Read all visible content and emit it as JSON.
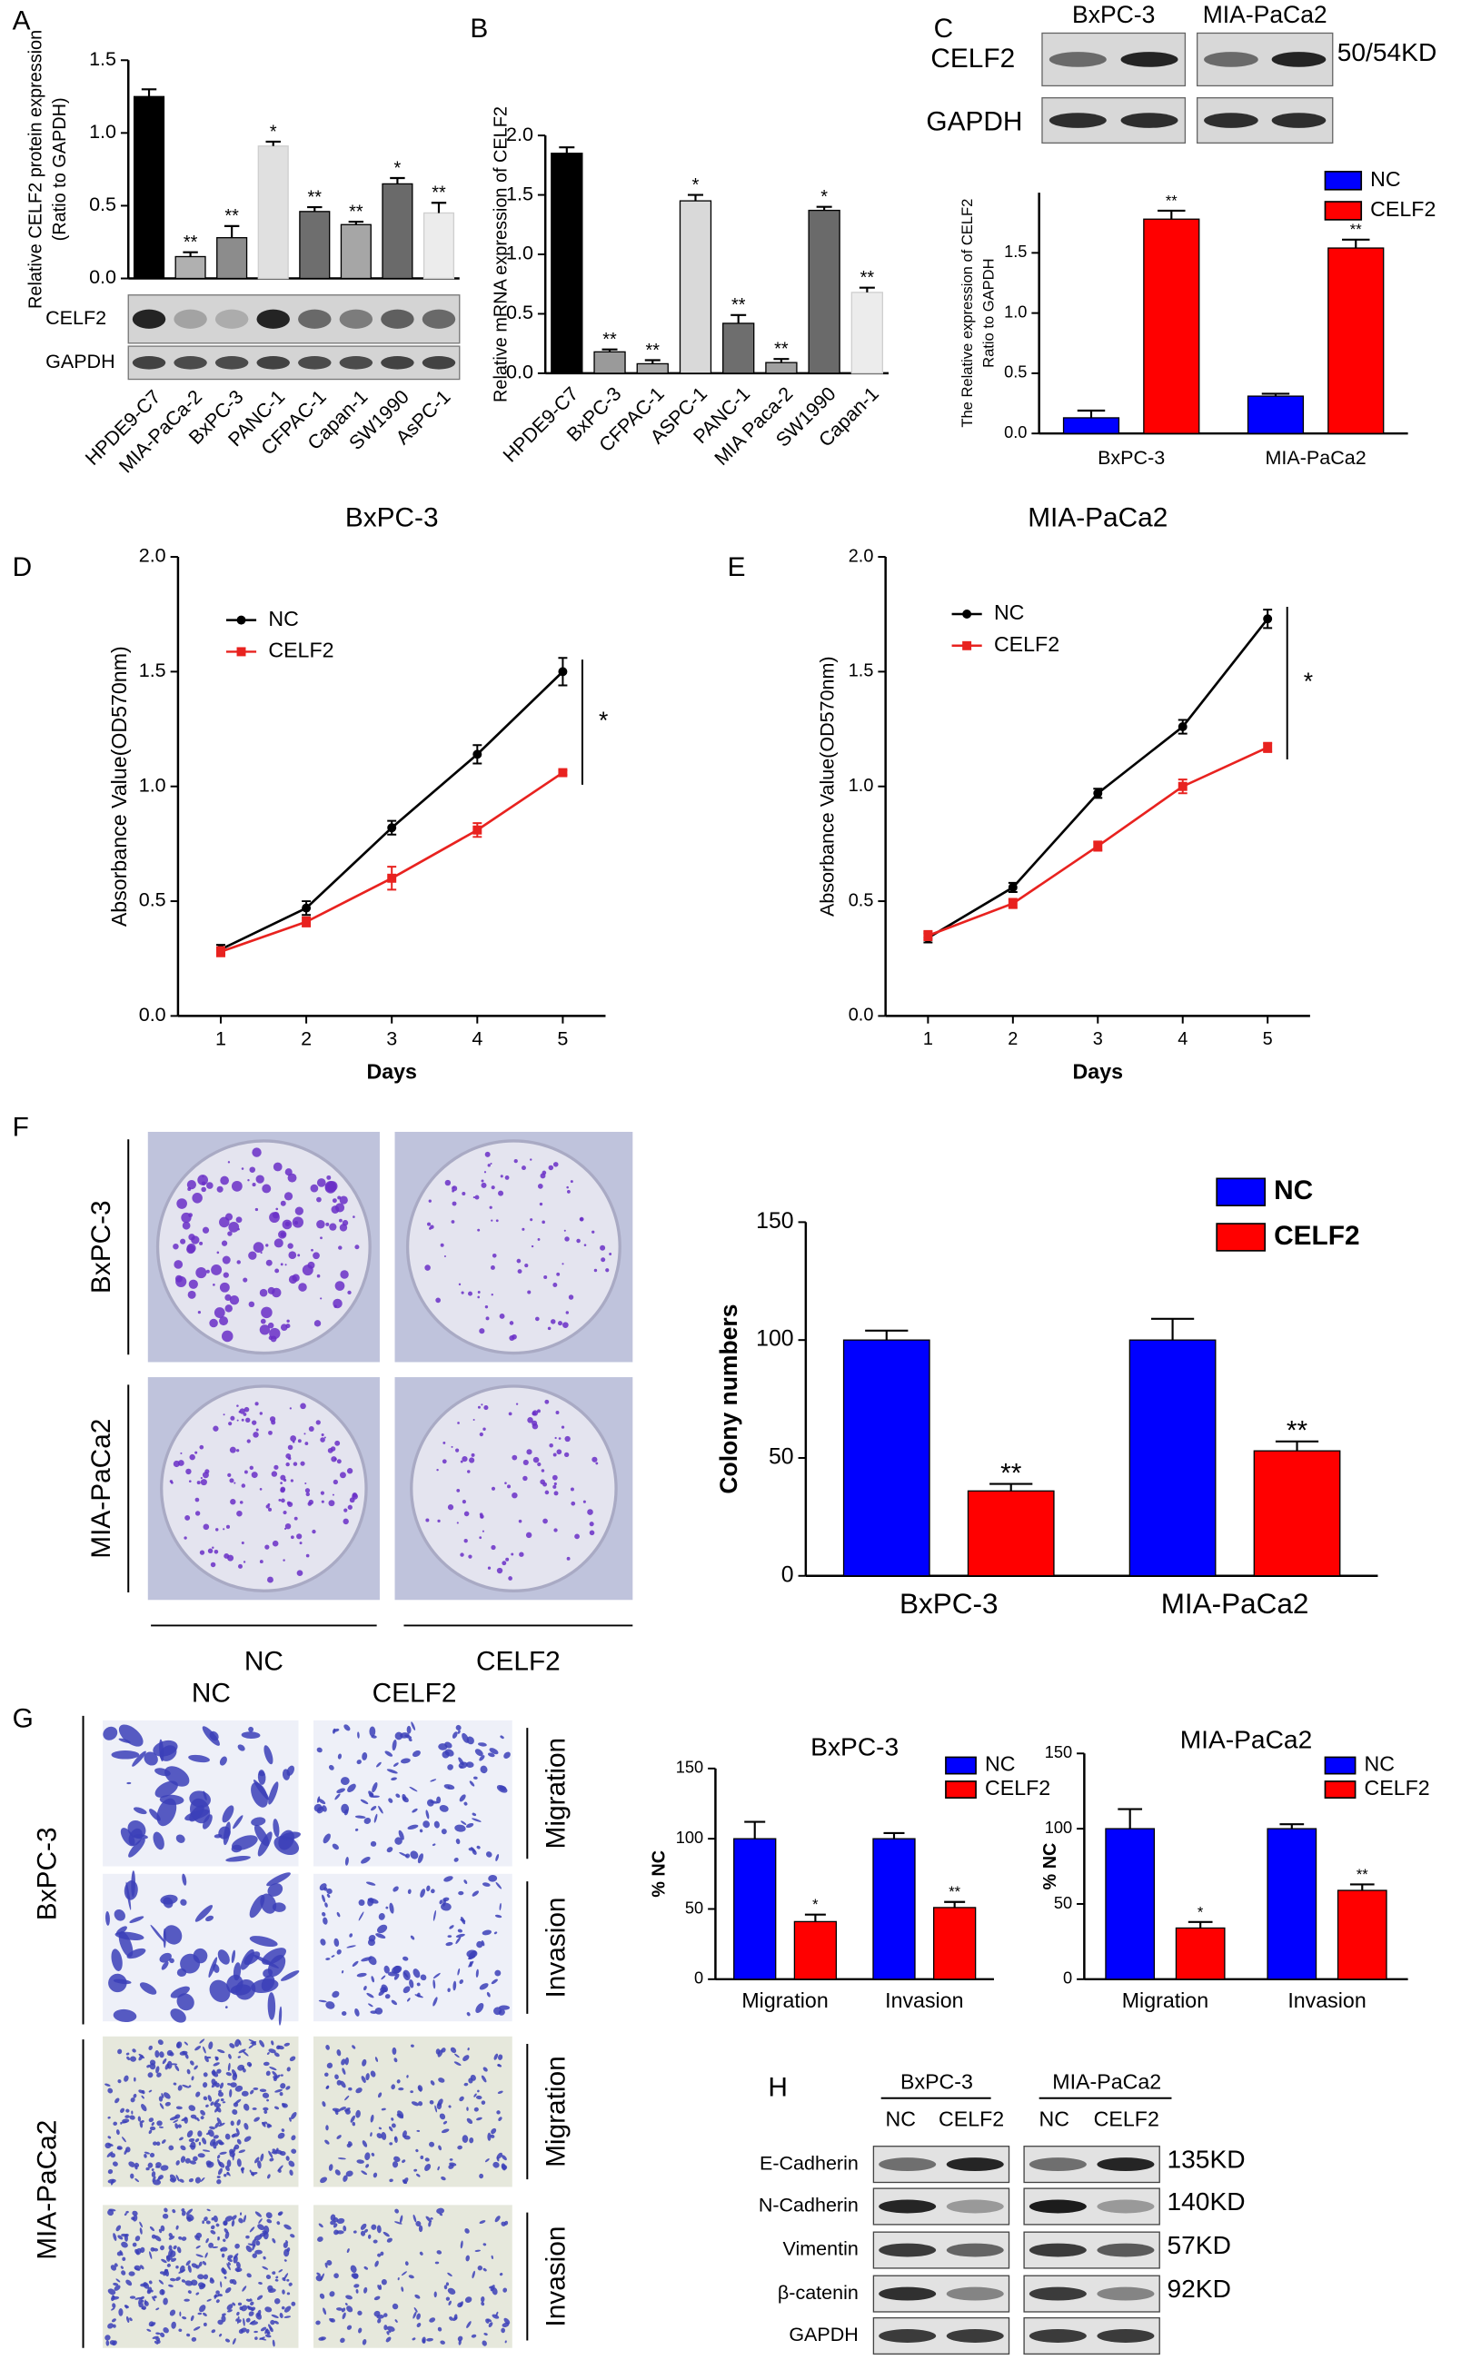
{
  "chart_data": [
    {
      "type": "bar",
      "ylabel": [
        "Relative CELF2 protein expression",
        "(Ratio to GAPDH)"
      ],
      "categories": [
        "HPDE9-C7",
        "MIA-PaCa-2",
        "BxPC-3",
        "PANC-1",
        "CFPAC-1",
        "Capan-1",
        "SW1990",
        "AsPC-1"
      ],
      "values": [
        1.25,
        0.15,
        0.28,
        0.91,
        0.46,
        0.37,
        0.65,
        0.45
      ],
      "errors": [
        0.05,
        0.03,
        0.08,
        0.03,
        0.03,
        0.02,
        0.04,
        0.07
      ],
      "annotations": [
        null,
        "**",
        "**",
        "*",
        "**",
        "**",
        "*",
        "**"
      ],
      "colors": [
        "#000000",
        "#b0b0b0",
        "#8c8c8c",
        "#e0e0e0",
        "#6e6e6e",
        "#a6a6a6",
        "#6a6a6a",
        "#ececec"
      ],
      "ylim": [
        0,
        1.5
      ],
      "yticks": [
        {
          "value": 0,
          "label": "0.0"
        },
        0.5,
        {
          "value": 1,
          "label": "1.0"
        },
        1.5
      ]
    },
    {
      "type": "bar",
      "ylabel": [
        "Relative mRNA expression of CELF2"
      ],
      "categories": [
        "HPDE9-C7",
        "BxPC-3",
        "CFPAC-1",
        "ASPC-1",
        "PANC-1",
        "MIA Paca-2",
        "SW1990",
        "Capan-1"
      ],
      "values": [
        1.85,
        0.18,
        0.08,
        1.45,
        0.42,
        0.09,
        1.37,
        0.68
      ],
      "errors": [
        0.05,
        0.02,
        0.03,
        0.05,
        0.07,
        0.03,
        0.03,
        0.04
      ],
      "annotations": [
        null,
        "**",
        "**",
        "*",
        "**",
        "**",
        "*",
        "**"
      ],
      "colors": [
        "#000000",
        "#9a9a9a",
        "#a8a8a8",
        "#d9d9d9",
        "#6e6e6e",
        "#a0a0a0",
        "#6a6a6a",
        "#ececec"
      ],
      "ylim": [
        0,
        2
      ],
      "yticks": [
        {
          "value": 0,
          "label": "0.0"
        },
        0.5,
        {
          "value": 1,
          "label": "1.0"
        },
        1.5,
        {
          "value": 2,
          "label": "2.0"
        }
      ]
    },
    {
      "type": "bar",
      "ylabel": [
        "The Relative expression of CELF2",
        "Ratio to GAPDH"
      ],
      "categories": [
        "BxPC-3",
        "MIA-PaCa2"
      ],
      "series": [
        {
          "name": "NC",
          "color": "#0000ff",
          "values": [
            0.13,
            0.31
          ],
          "errors": [
            0.06,
            0.02
          ]
        },
        {
          "name": "CELF2",
          "color": "#ff0000",
          "values": [
            1.78,
            1.54
          ],
          "errors": [
            0.07,
            0.07
          ],
          "annotations": [
            "**",
            "**"
          ]
        }
      ],
      "legend": "upper right",
      "ylim": [
        0,
        2
      ],
      "yticks": [
        {
          "value": 0,
          "label": "0.0"
        },
        0.5,
        {
          "value": 1,
          "label": "1.0"
        },
        1.5
      ]
    },
    {
      "type": "line",
      "title": "BxPC-3",
      "xlabel": "Days",
      "ylabel": [
        "Absorbance Value(OD570nm)"
      ],
      "x": [
        1,
        2,
        3,
        4,
        5
      ],
      "series": [
        {
          "name": "NC",
          "color": "#000000",
          "values": [
            0.29,
            0.47,
            0.82,
            1.14,
            1.5
          ],
          "errors": [
            0.02,
            0.03,
            0.03,
            0.04,
            0.06
          ]
        },
        {
          "name": "CELF2",
          "color": "#e8221f",
          "values": [
            0.28,
            0.41,
            0.6,
            0.81,
            1.06
          ],
          "errors": [
            0.02,
            0.02,
            0.05,
            0.03,
            0.01
          ]
        }
      ],
      "annotation": "*",
      "legend": "upper left",
      "xlim": [
        0.5,
        5.5
      ],
      "xticks": [
        1,
        2,
        3,
        4,
        5
      ],
      "ylim": [
        0,
        2
      ],
      "yticks": [
        {
          "value": 0,
          "label": "0.0"
        },
        0.5,
        {
          "value": 1,
          "label": "1.0"
        },
        1.5,
        {
          "value": 2,
          "label": "2.0"
        }
      ]
    },
    {
      "type": "line",
      "title": "MIA-PaCa2",
      "xlabel": "Days",
      "ylabel": [
        "Absorbance Value(OD570nm)"
      ],
      "x": [
        1,
        2,
        3,
        4,
        5
      ],
      "series": [
        {
          "name": "NC",
          "color": "#000000",
          "values": [
            0.34,
            0.56,
            0.97,
            1.26,
            1.73
          ],
          "errors": [
            0.02,
            0.02,
            0.02,
            0.03,
            0.04
          ]
        },
        {
          "name": "CELF2",
          "color": "#e8221f",
          "values": [
            0.35,
            0.49,
            0.74,
            1.0,
            1.17
          ],
          "errors": [
            0.02,
            0.02,
            0.02,
            0.03,
            0.02
          ]
        }
      ],
      "annotation": "*",
      "legend": "upper left",
      "xlim": [
        0.5,
        5.5
      ],
      "xticks": [
        1,
        2,
        3,
        4,
        5
      ],
      "ylim": [
        0,
        2
      ],
      "yticks": [
        {
          "value": 0,
          "label": "0.0"
        },
        0.5,
        {
          "value": 1,
          "label": "1.0"
        },
        1.5,
        {
          "value": 2,
          "label": "2.0"
        }
      ]
    },
    {
      "type": "bar",
      "ylabel": [
        "Colony numbers"
      ],
      "categories": [
        "BxPC-3",
        "MIA-PaCa2"
      ],
      "series": [
        {
          "name": "NC",
          "color": "#0000ff",
          "values": [
            100,
            100
          ],
          "errors": [
            4,
            9
          ]
        },
        {
          "name": "CELF2",
          "color": "#ff0000",
          "values": [
            36,
            53
          ],
          "errors": [
            3,
            4
          ],
          "annotations": [
            "**",
            "**"
          ]
        }
      ],
      "legend": "upper right",
      "ylim": [
        0,
        150
      ],
      "yticks": [
        0,
        50,
        100,
        150
      ]
    },
    {
      "type": "bar",
      "title": "BxPC-3",
      "ylabel": [
        "% NC"
      ],
      "categories": [
        "Migration",
        "Invasion"
      ],
      "series": [
        {
          "name": "NC",
          "color": "#0000ff",
          "values": [
            100,
            100
          ],
          "errors": [
            12,
            4
          ]
        },
        {
          "name": "CELF2",
          "color": "#ff0000",
          "values": [
            41,
            51
          ],
          "errors": [
            5,
            4
          ],
          "annotations": [
            "*",
            "**"
          ]
        }
      ],
      "legend": "upper right",
      "ylim": [
        0,
        150
      ],
      "yticks": [
        0,
        50,
        100,
        150
      ]
    },
    {
      "type": "bar",
      "title": "MIA-PaCa2",
      "ylabel": [
        "% NC"
      ],
      "categories": [
        "Migration",
        "Invasion"
      ],
      "series": [
        {
          "name": "NC",
          "color": "#0000ff",
          "values": [
            100,
            100
          ],
          "errors": [
            13,
            3
          ]
        },
        {
          "name": "CELF2",
          "color": "#ff0000",
          "values": [
            34,
            59
          ],
          "errors": [
            4,
            4
          ],
          "annotations": [
            "*",
            "**"
          ]
        }
      ],
      "legend": "upper right",
      "ylim": [
        0,
        150
      ],
      "yticks": [
        0,
        50,
        100,
        150
      ]
    }
  ],
  "figure": {
    "panel_letters": [
      "A",
      "B",
      "C",
      "D",
      "E",
      "F",
      "G",
      "H"
    ],
    "blot_A": {
      "rows": [
        "CELF2",
        "GAPDH"
      ]
    },
    "blot_C": {
      "cells": [
        "BxPC-3",
        "MIA-PaCa2"
      ],
      "rows": [
        "CELF2",
        "GAPDH"
      ],
      "size": "50/54KD"
    },
    "plates_F": {
      "rows": [
        "BxPC-3",
        "MIA-PaCa2"
      ],
      "cols": [
        "NC",
        "CELF2"
      ]
    },
    "transwell_G": {
      "cols": [
        "NC",
        "CELF2"
      ],
      "cells": [
        "BxPC-3",
        "MIA-PaCa2"
      ],
      "assays": [
        "Migration",
        "Invasion",
        "Migration",
        "Invasion"
      ]
    },
    "blot_H": {
      "cells": [
        "BxPC-3",
        "MIA-PaCa2"
      ],
      "lanes": [
        "NC",
        "CELF2",
        "NC",
        "CELF2"
      ],
      "rows": [
        "E-Cadherin",
        "N-Cadherin",
        "Vimentin",
        "β-catenin",
        "GAPDH"
      ],
      "sizes": [
        "135KD",
        "140KD",
        "57KD",
        "92KD"
      ]
    }
  }
}
